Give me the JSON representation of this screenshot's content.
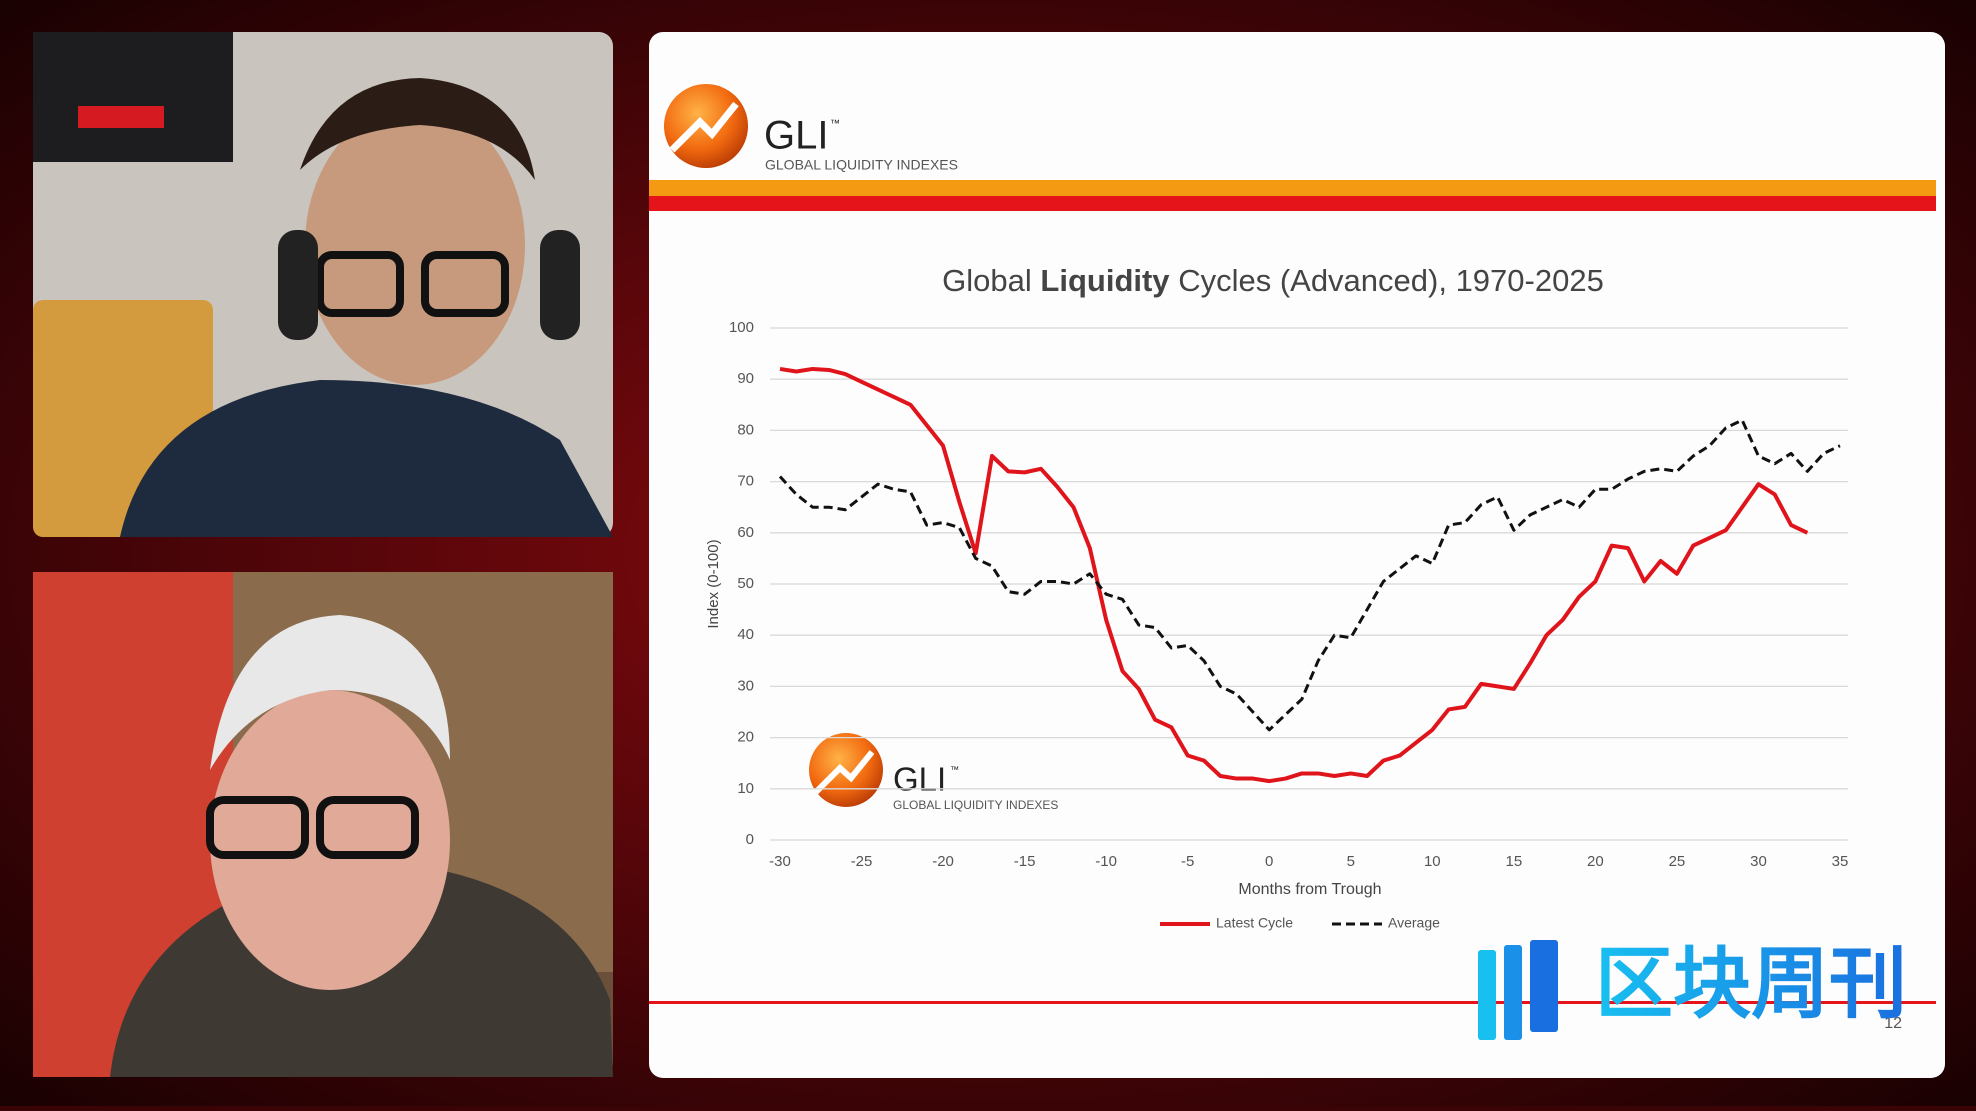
{
  "slide": {
    "logo_text": "GLI",
    "logo_tm": "™",
    "logo_subtitle": "GLOBAL LIQUIDITY INDEXES",
    "page_number": "12"
  },
  "watermark": "区块周刊",
  "chart_data": {
    "type": "line",
    "title_runs": [
      "Global",
      "Liquidity",
      "Cycles (Advanced), 1970-2025"
    ],
    "x_label": "Months from Trough",
    "y_label": "Index (0-100)",
    "x": [
      -30,
      -29,
      -28,
      -27,
      -26,
      -25,
      -24,
      -23,
      -22,
      -21,
      -20,
      -19,
      -18,
      -17,
      -16,
      -15,
      -14,
      -13,
      -12,
      -11,
      -10,
      -9,
      -8,
      -7,
      -6,
      -5,
      -4,
      -3,
      -2,
      -1,
      0,
      1,
      2,
      3,
      4,
      5,
      6,
      7,
      8,
      9,
      10,
      11,
      12,
      13,
      14,
      15,
      16,
      17,
      18,
      19,
      20,
      21,
      22,
      23,
      24,
      25,
      26,
      27,
      28,
      29,
      30,
      31,
      32,
      33,
      34,
      35
    ],
    "series": [
      {
        "name": "Latest Cycle",
        "color": "#e0141b",
        "style": "solid",
        "values": [
          92,
          91.5,
          92,
          91.8,
          91,
          89.5,
          88,
          86.5,
          85,
          81,
          77,
          66,
          56,
          75,
          72,
          71.8,
          72.5,
          69,
          65,
          57,
          43,
          33,
          29.5,
          23.5,
          22,
          16.5,
          15.5,
          12.5,
          12,
          12,
          11.5,
          12,
          13,
          13,
          12.5,
          13,
          12.5,
          15.5,
          16.5,
          19,
          21.5,
          25.5,
          26,
          30.5,
          30,
          29.5,
          34.5,
          40,
          43,
          47.5,
          50.5,
          57.5,
          57,
          50.5,
          54.5,
          52,
          57.5,
          59,
          60.5,
          65,
          69.5,
          67.5,
          61.5,
          60,
          null,
          null
        ]
      },
      {
        "name": "Average",
        "color": "#111111",
        "style": "dashed",
        "values": [
          71,
          67.5,
          65,
          65,
          64.5,
          67,
          69.5,
          68.5,
          68,
          61.5,
          62,
          61,
          55,
          53.5,
          48.5,
          48,
          50.5,
          50.5,
          50,
          52,
          48,
          47,
          42,
          41.5,
          37.5,
          38,
          35,
          30,
          28.5,
          25,
          21.5,
          24.5,
          27.5,
          35,
          40,
          39.5,
          45,
          50.5,
          53,
          55.5,
          54,
          61.5,
          62,
          65.5,
          67,
          60.5,
          63.5,
          65,
          66.5,
          65,
          68.5,
          68.5,
          70.5,
          72,
          72.5,
          72,
          75,
          77,
          80.5,
          82,
          75,
          73.5,
          75.5,
          72,
          75.5,
          77
        ]
      }
    ],
    "xlim": [
      -30,
      35
    ],
    "xticks": [
      -30,
      -25,
      -20,
      -15,
      -10,
      -5,
      0,
      5,
      10,
      15,
      20,
      25,
      30,
      35
    ],
    "ylim": [
      0,
      100
    ],
    "yticks": [
      0,
      10,
      20,
      30,
      40,
      50,
      60,
      70,
      80,
      90,
      100
    ],
    "grid": true,
    "legend": "bottom"
  }
}
